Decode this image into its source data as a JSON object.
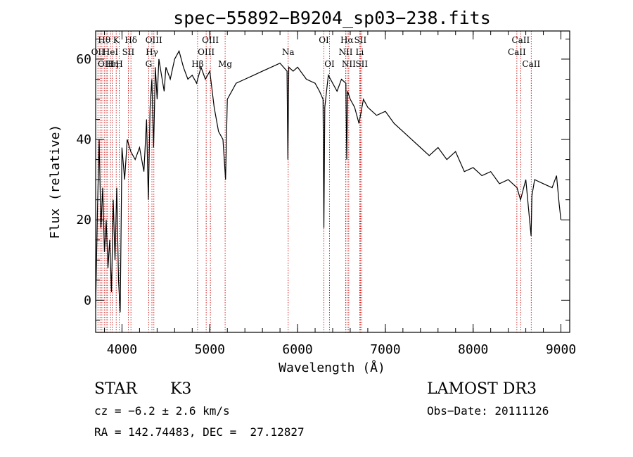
{
  "chart_data": {
    "type": "line",
    "title": "spec−55892−B9204_sp03−238.fits",
    "xlabel": "Wavelength (Å)",
    "ylabel": "Flux (relative)",
    "xlim": [
      3700,
      9100
    ],
    "ylim": [
      -8,
      67
    ],
    "xticks": [
      4000,
      5000,
      6000,
      7000,
      8000,
      9000
    ],
    "yticks": [
      0,
      20,
      40,
      60
    ],
    "series": [
      {
        "name": "spectrum",
        "x": [
          3700,
          3720,
          3740,
          3760,
          3780,
          3800,
          3820,
          3840,
          3860,
          3880,
          3900,
          3920,
          3940,
          3960,
          3980,
          4000,
          4030,
          4060,
          4100,
          4150,
          4200,
          4250,
          4280,
          4300,
          4320,
          4340,
          4360,
          4380,
          4400,
          4420,
          4450,
          4480,
          4500,
          4550,
          4600,
          4650,
          4700,
          4750,
          4800,
          4850,
          4900,
          4950,
          5000,
          5050,
          5100,
          5150,
          5180,
          5200,
          5250,
          5300,
          5400,
          5500,
          5600,
          5700,
          5800,
          5880,
          5890,
          5900,
          5950,
          6000,
          6100,
          6200,
          6250,
          6290,
          6300,
          6310,
          6350,
          6400,
          6450,
          6500,
          6550,
          6560,
          6570,
          6600,
          6650,
          6700,
          6750,
          6800,
          6900,
          7000,
          7100,
          7200,
          7300,
          7400,
          7500,
          7600,
          7700,
          7800,
          7900,
          8000,
          8100,
          8200,
          8300,
          8400,
          8500,
          8540,
          8600,
          8660,
          8670,
          8700,
          8800,
          8900,
          8950,
          8980,
          9000
        ],
        "y": [
          -2,
          22,
          40,
          18,
          28,
          12,
          20,
          8,
          15,
          2,
          25,
          10,
          28,
          5,
          -3,
          38,
          30,
          40,
          37,
          35,
          38,
          32,
          45,
          25,
          48,
          55,
          38,
          58,
          50,
          60,
          56,
          52,
          58,
          55,
          60,
          62,
          58,
          55,
          56,
          54,
          58,
          55,
          57,
          48,
          42,
          40,
          30,
          50,
          52,
          54,
          55,
          56,
          57,
          58,
          59,
          57,
          35,
          58,
          57,
          58,
          55,
          54,
          52,
          50,
          18,
          48,
          56,
          54,
          52,
          55,
          54,
          35,
          52,
          50,
          48,
          44,
          50,
          48,
          46,
          47,
          44,
          42,
          40,
          38,
          36,
          38,
          35,
          37,
          32,
          33,
          31,
          32,
          29,
          30,
          28,
          25,
          30,
          16,
          26,
          30,
          29,
          28,
          31,
          24,
          20
        ]
      }
    ],
    "lines": [
      {
        "wave": 3726,
        "label": "OII",
        "row": 1
      },
      {
        "wave": 3750,
        "label": "",
        "row": 0
      },
      {
        "wave": 3771,
        "label": "",
        "row": 0
      },
      {
        "wave": 3798,
        "label": "Hθ",
        "row": 0
      },
      {
        "wave": 3820,
        "label": "OIII",
        "row": 2
      },
      {
        "wave": 3835,
        "label": "",
        "row": 0
      },
      {
        "wave": 3869,
        "label": "HeI",
        "row": 1
      },
      {
        "wave": 3889,
        "label": "Hη",
        "row": 2
      },
      {
        "wave": 3934,
        "label": "K",
        "row": 0
      },
      {
        "wave": 3969,
        "label": "H",
        "row": 2
      },
      {
        "wave": 4072,
        "label": "SII",
        "row": 1
      },
      {
        "wave": 4102,
        "label": "Hδ",
        "row": 0
      },
      {
        "wave": 4304,
        "label": "G",
        "row": 2
      },
      {
        "wave": 4341,
        "label": "Hγ",
        "row": 1
      },
      {
        "wave": 4363,
        "label": "OIII",
        "row": 0
      },
      {
        "wave": 4861,
        "label": "Hβ",
        "row": 2
      },
      {
        "wave": 4959,
        "label": "OIII",
        "row": 1
      },
      {
        "wave": 5007,
        "label": "OIII",
        "row": 0
      },
      {
        "wave": 5175,
        "label": "Mg",
        "row": 2
      },
      {
        "wave": 5893,
        "label": "Na",
        "row": 1
      },
      {
        "wave": 6300,
        "label": "OI",
        "row": 0
      },
      {
        "wave": 6364,
        "label": "OI",
        "row": 2
      },
      {
        "wave": 6548,
        "label": "NII",
        "row": 1
      },
      {
        "wave": 6563,
        "label": "Hα",
        "row": 0
      },
      {
        "wave": 6583,
        "label": "NII",
        "row": 2
      },
      {
        "wave": 6708,
        "label": "Li",
        "row": 1
      },
      {
        "wave": 6716,
        "label": "SII",
        "row": 0
      },
      {
        "wave": 6731,
        "label": "SII",
        "row": 2
      },
      {
        "wave": 8498,
        "label": "CaII",
        "row": 1
      },
      {
        "wave": 8542,
        "label": "CaII",
        "row": 0
      },
      {
        "wave": 8662,
        "label": "CaII",
        "row": 2
      }
    ]
  },
  "info": {
    "class": "STAR",
    "subclass": "K3",
    "survey": "LAMOST DR3",
    "cz": "cz = −6.2 ± 2.6 km/s",
    "obs_date": "Obs−Date: 20111126",
    "coords": "RA = 142.74483, DEC =  27.12827"
  },
  "colors": {
    "axis": "#000000",
    "spectrum": "#000000",
    "line_marker": "#cc0000"
  }
}
